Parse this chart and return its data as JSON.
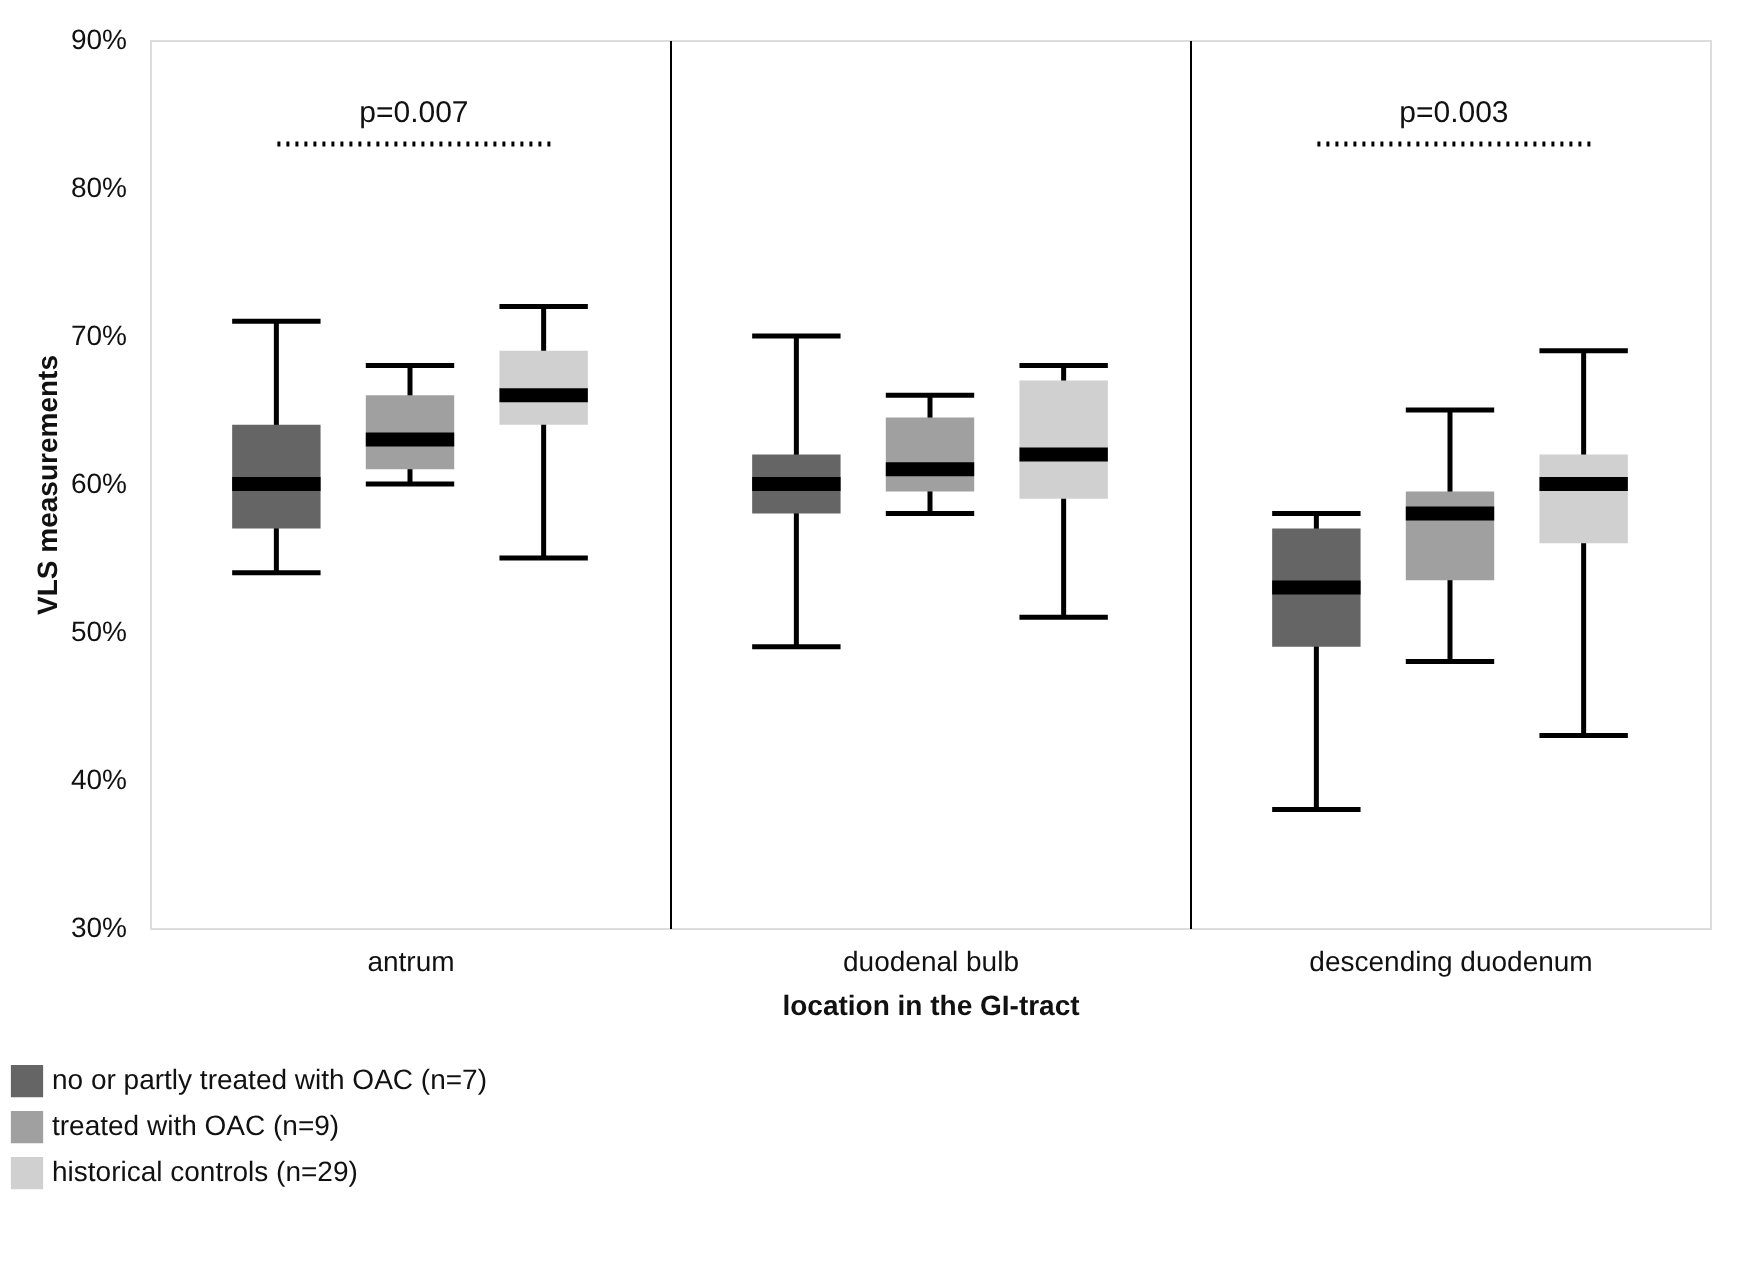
{
  "chart_data": {
    "type": "box",
    "xlabel": "location in the GI-tract",
    "ylabel": "VLS measurements",
    "categories": [
      "antrum",
      "duodenal bulb",
      "descending duodenum"
    ],
    "ylim": [
      30,
      90
    ],
    "yticks": [
      {
        "value": 30,
        "label": "30%"
      },
      {
        "value": 40,
        "label": "40%"
      },
      {
        "value": 50,
        "label": "50%"
      },
      {
        "value": 60,
        "label": "60%"
      },
      {
        "value": 70,
        "label": "70%"
      },
      {
        "value": 80,
        "label": "80%"
      },
      {
        "value": 90,
        "label": "90%"
      }
    ],
    "grid": false,
    "legend": "bottom left",
    "series": [
      {
        "name": "no or partly treated with OAC (n=7)",
        "color": "#656565",
        "boxes": [
          {
            "low": 54,
            "q1": 57,
            "median": 60,
            "q3": 64,
            "high": 71
          },
          {
            "low": 49,
            "q1": 58,
            "median": 60,
            "q3": 62,
            "high": 70
          },
          {
            "low": 38,
            "q1": 49,
            "median": 53,
            "q3": 57,
            "high": 58
          }
        ]
      },
      {
        "name": "treated with OAC (n=9)",
        "color": "#a0a0a0",
        "boxes": [
          {
            "low": 60,
            "q1": 61,
            "median": 63,
            "q3": 66,
            "high": 68
          },
          {
            "low": 58,
            "q1": 59.5,
            "median": 61,
            "q3": 64.5,
            "high": 66
          },
          {
            "low": 48,
            "q1": 53.5,
            "median": 58,
            "q3": 59.5,
            "high": 65
          }
        ]
      },
      {
        "name": "historical controls (n=29)",
        "color": "#d0d0d0",
        "boxes": [
          {
            "low": 55,
            "q1": 64,
            "median": 66,
            "q3": 69,
            "high": 72
          },
          {
            "low": 51,
            "q1": 59,
            "median": 62,
            "q3": 67,
            "high": 68
          },
          {
            "low": 43,
            "q1": 56,
            "median": 60,
            "q3": 62,
            "high": 69
          }
        ]
      }
    ],
    "annotations": [
      "p=0.007",
      "p=0.003"
    ]
  }
}
